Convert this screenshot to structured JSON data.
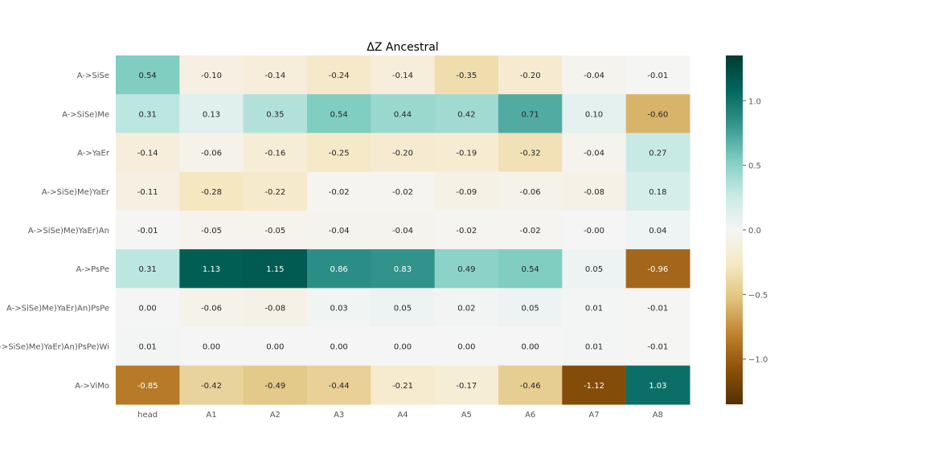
{
  "chart_data": {
    "type": "heatmap",
    "title": "ΔZ Ancestral",
    "xlabel": "",
    "ylabel": "",
    "columns": [
      "head",
      "A1",
      "A2",
      "A3",
      "A4",
      "A5",
      "A6",
      "A7",
      "A8"
    ],
    "rows": [
      "A->SiSe",
      "A->SiSe)Me",
      "A->YaEr",
      "A->SiSe)Me)YaEr",
      "A->SiSe)Me)YaEr)An",
      "A->PsPe",
      "A->SiSe)Me)YaEr)An)PsPe",
      "A->SiSe)Me)YaEr)An)PsPe)Wi",
      "A->ViMo"
    ],
    "values": [
      [
        0.54,
        -0.1,
        -0.14,
        -0.24,
        -0.14,
        -0.35,
        -0.2,
        -0.04,
        -0.01
      ],
      [
        0.31,
        0.13,
        0.35,
        0.54,
        0.44,
        0.42,
        0.71,
        0.1,
        -0.6
      ],
      [
        -0.14,
        -0.06,
        -0.16,
        -0.25,
        -0.2,
        -0.19,
        -0.32,
        -0.04,
        0.27
      ],
      [
        -0.11,
        -0.28,
        -0.22,
        -0.02,
        -0.02,
        -0.09,
        -0.06,
        -0.08,
        0.18
      ],
      [
        -0.01,
        -0.05,
        -0.05,
        -0.04,
        -0.04,
        -0.02,
        -0.02,
        -0.0,
        0.04
      ],
      [
        0.31,
        1.13,
        1.15,
        0.86,
        0.83,
        0.49,
        0.54,
        0.05,
        -0.96
      ],
      [
        0.0,
        -0.06,
        -0.08,
        0.03,
        0.05,
        0.02,
        0.05,
        0.01,
        -0.01
      ],
      [
        0.01,
        0.0,
        0.0,
        0.0,
        0.0,
        0.0,
        0.0,
        0.01,
        -0.01
      ],
      [
        -0.85,
        -0.42,
        -0.49,
        -0.44,
        -0.21,
        -0.17,
        -0.46,
        -1.12,
        1.03
      ]
    ],
    "colormap": "BrBG",
    "vmin": -1.35,
    "vmax": 1.35,
    "colorbar_ticks": [
      "1.0",
      "0.5",
      "0.0",
      "−0.5",
      "−1.0"
    ],
    "colorbar_tick_values": [
      1.0,
      0.5,
      0.0,
      -0.5,
      -1.0
    ],
    "annotate": true,
    "legend_position": "right"
  }
}
